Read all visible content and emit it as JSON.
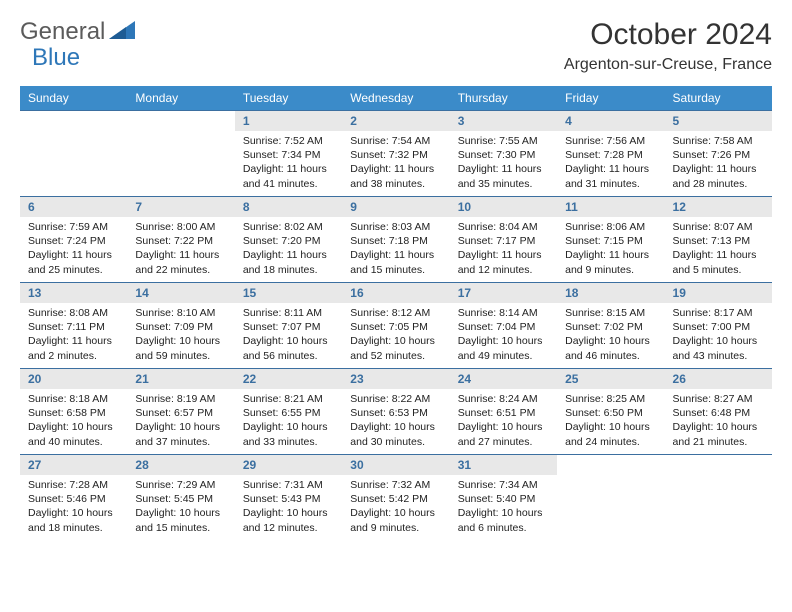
{
  "brand": {
    "text1": "General",
    "text2": "Blue"
  },
  "title": "October 2024",
  "location": "Argenton-sur-Creuse, France",
  "colors": {
    "header_bg": "#3b8bc9",
    "header_text": "#ffffff",
    "daynum_bg": "#e8e8e8",
    "daynum_text": "#3b6fa0",
    "cell_border": "#3b6fa0",
    "body_text": "#222222",
    "brand_gray": "#5b5b5b",
    "brand_blue": "#2e77b8"
  },
  "weekdays": [
    "Sunday",
    "Monday",
    "Tuesday",
    "Wednesday",
    "Thursday",
    "Friday",
    "Saturday"
  ],
  "weeks": [
    [
      null,
      null,
      {
        "n": "1",
        "sr": "7:52 AM",
        "ss": "7:34 PM",
        "dl": "11 hours and 41 minutes."
      },
      {
        "n": "2",
        "sr": "7:54 AM",
        "ss": "7:32 PM",
        "dl": "11 hours and 38 minutes."
      },
      {
        "n": "3",
        "sr": "7:55 AM",
        "ss": "7:30 PM",
        "dl": "11 hours and 35 minutes."
      },
      {
        "n": "4",
        "sr": "7:56 AM",
        "ss": "7:28 PM",
        "dl": "11 hours and 31 minutes."
      },
      {
        "n": "5",
        "sr": "7:58 AM",
        "ss": "7:26 PM",
        "dl": "11 hours and 28 minutes."
      }
    ],
    [
      {
        "n": "6",
        "sr": "7:59 AM",
        "ss": "7:24 PM",
        "dl": "11 hours and 25 minutes."
      },
      {
        "n": "7",
        "sr": "8:00 AM",
        "ss": "7:22 PM",
        "dl": "11 hours and 22 minutes."
      },
      {
        "n": "8",
        "sr": "8:02 AM",
        "ss": "7:20 PM",
        "dl": "11 hours and 18 minutes."
      },
      {
        "n": "9",
        "sr": "8:03 AM",
        "ss": "7:18 PM",
        "dl": "11 hours and 15 minutes."
      },
      {
        "n": "10",
        "sr": "8:04 AM",
        "ss": "7:17 PM",
        "dl": "11 hours and 12 minutes."
      },
      {
        "n": "11",
        "sr": "8:06 AM",
        "ss": "7:15 PM",
        "dl": "11 hours and 9 minutes."
      },
      {
        "n": "12",
        "sr": "8:07 AM",
        "ss": "7:13 PM",
        "dl": "11 hours and 5 minutes."
      }
    ],
    [
      {
        "n": "13",
        "sr": "8:08 AM",
        "ss": "7:11 PM",
        "dl": "11 hours and 2 minutes."
      },
      {
        "n": "14",
        "sr": "8:10 AM",
        "ss": "7:09 PM",
        "dl": "10 hours and 59 minutes."
      },
      {
        "n": "15",
        "sr": "8:11 AM",
        "ss": "7:07 PM",
        "dl": "10 hours and 56 minutes."
      },
      {
        "n": "16",
        "sr": "8:12 AM",
        "ss": "7:05 PM",
        "dl": "10 hours and 52 minutes."
      },
      {
        "n": "17",
        "sr": "8:14 AM",
        "ss": "7:04 PM",
        "dl": "10 hours and 49 minutes."
      },
      {
        "n": "18",
        "sr": "8:15 AM",
        "ss": "7:02 PM",
        "dl": "10 hours and 46 minutes."
      },
      {
        "n": "19",
        "sr": "8:17 AM",
        "ss": "7:00 PM",
        "dl": "10 hours and 43 minutes."
      }
    ],
    [
      {
        "n": "20",
        "sr": "8:18 AM",
        "ss": "6:58 PM",
        "dl": "10 hours and 40 minutes."
      },
      {
        "n": "21",
        "sr": "8:19 AM",
        "ss": "6:57 PM",
        "dl": "10 hours and 37 minutes."
      },
      {
        "n": "22",
        "sr": "8:21 AM",
        "ss": "6:55 PM",
        "dl": "10 hours and 33 minutes."
      },
      {
        "n": "23",
        "sr": "8:22 AM",
        "ss": "6:53 PM",
        "dl": "10 hours and 30 minutes."
      },
      {
        "n": "24",
        "sr": "8:24 AM",
        "ss": "6:51 PM",
        "dl": "10 hours and 27 minutes."
      },
      {
        "n": "25",
        "sr": "8:25 AM",
        "ss": "6:50 PM",
        "dl": "10 hours and 24 minutes."
      },
      {
        "n": "26",
        "sr": "8:27 AM",
        "ss": "6:48 PM",
        "dl": "10 hours and 21 minutes."
      }
    ],
    [
      {
        "n": "27",
        "sr": "7:28 AM",
        "ss": "5:46 PM",
        "dl": "10 hours and 18 minutes."
      },
      {
        "n": "28",
        "sr": "7:29 AM",
        "ss": "5:45 PM",
        "dl": "10 hours and 15 minutes."
      },
      {
        "n": "29",
        "sr": "7:31 AM",
        "ss": "5:43 PM",
        "dl": "10 hours and 12 minutes."
      },
      {
        "n": "30",
        "sr": "7:32 AM",
        "ss": "5:42 PM",
        "dl": "10 hours and 9 minutes."
      },
      {
        "n": "31",
        "sr": "7:34 AM",
        "ss": "5:40 PM",
        "dl": "10 hours and 6 minutes."
      },
      null,
      null
    ]
  ],
  "labels": {
    "sunrise": "Sunrise: ",
    "sunset": "Sunset: ",
    "daylight": "Daylight: "
  }
}
